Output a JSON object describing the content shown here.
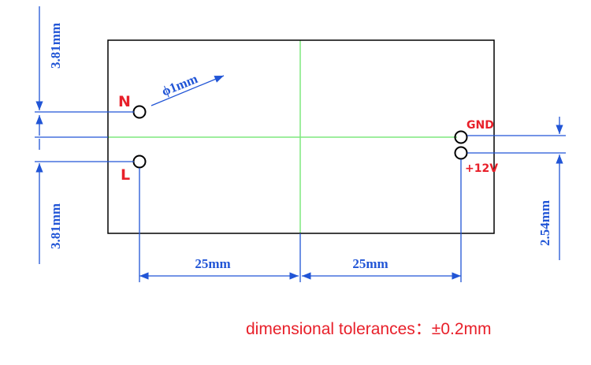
{
  "dimensions": {
    "top_left": "3.81mm",
    "bottom_left": "3.81mm",
    "right": "2.54mm",
    "span_left": "25mm",
    "span_right": "25mm"
  },
  "hole_diameter": "ϕ1mm",
  "pins": {
    "n": "N",
    "l": "L",
    "gnd": "GND",
    "v12": "+12V"
  },
  "note": "dimensional tolerances：±0.2mm"
}
